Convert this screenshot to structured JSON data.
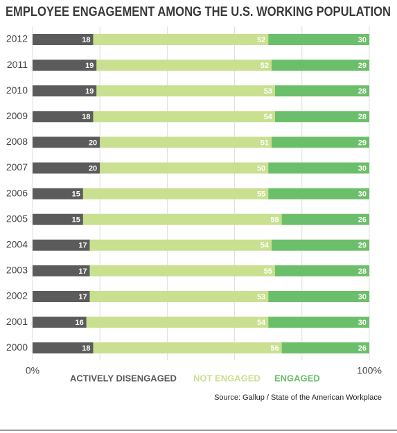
{
  "chart_data": {
    "type": "stacked-bar-horizontal",
    "title": "EMPLOYEE ENGAGEMENT AMONG THE U.S. WORKING POPULATION",
    "source": "Source: Gallup / State of the American Workplace",
    "categories": [
      "2012",
      "2011",
      "2010",
      "2009",
      "2008",
      "2007",
      "2006",
      "2005",
      "2004",
      "2003",
      "2002",
      "2001",
      "2000"
    ],
    "series": [
      {
        "name": "ACTIVELY DISENGAGED",
        "color": "#5b5b5b",
        "values": [
          18,
          19,
          19,
          18,
          20,
          20,
          15,
          15,
          17,
          17,
          17,
          16,
          18
        ]
      },
      {
        "name": "NOT ENGAGED",
        "color": "#c9e090",
        "values": [
          52,
          52,
          53,
          54,
          51,
          50,
          55,
          59,
          54,
          55,
          53,
          54,
          56
        ]
      },
      {
        "name": "ENGAGED",
        "color": "#6cbf6a",
        "values": [
          30,
          29,
          28,
          28,
          29,
          30,
          30,
          26,
          29,
          28,
          30,
          30,
          26
        ]
      }
    ],
    "xlim": [
      0,
      100
    ],
    "xticks": [
      {
        "value": 0,
        "label": "0%"
      },
      {
        "value": 100,
        "label": "100%"
      }
    ],
    "grid_lines": [
      0,
      20,
      40,
      60,
      80,
      100
    ],
    "grid": true
  }
}
